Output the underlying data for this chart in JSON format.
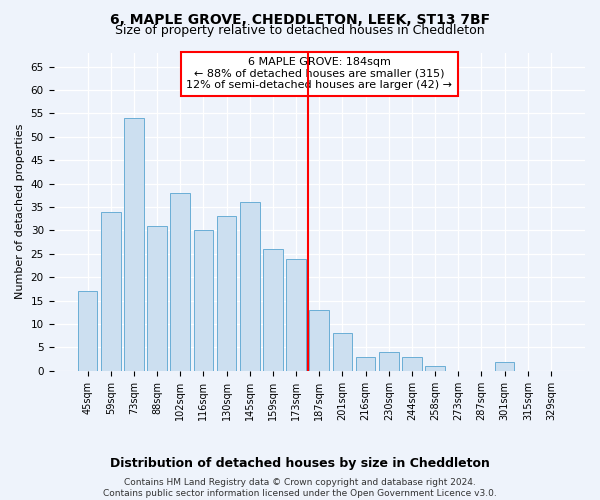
{
  "title": "6, MAPLE GROVE, CHEDDLETON, LEEK, ST13 7BF",
  "subtitle": "Size of property relative to detached houses in Cheddleton",
  "xlabel_bottom": "Distribution of detached houses by size in Cheddleton",
  "ylabel": "Number of detached properties",
  "categories": [
    "45sqm",
    "59sqm",
    "73sqm",
    "88sqm",
    "102sqm",
    "116sqm",
    "130sqm",
    "145sqm",
    "159sqm",
    "173sqm",
    "187sqm",
    "201sqm",
    "216sqm",
    "230sqm",
    "244sqm",
    "258sqm",
    "273sqm",
    "287sqm",
    "301sqm",
    "315sqm",
    "329sqm"
  ],
  "values": [
    17,
    34,
    54,
    31,
    38,
    30,
    33,
    36,
    26,
    24,
    13,
    8,
    3,
    4,
    3,
    1,
    0,
    0,
    2,
    0,
    0
  ],
  "bar_color": "#ccdff0",
  "bar_edge_color": "#6aaed6",
  "annotation_text": "6 MAPLE GROVE: 184sqm\n← 88% of detached houses are smaller (315)\n12% of semi-detached houses are larger (42) →",
  "annotation_box_color": "white",
  "annotation_box_edge_color": "red",
  "ylim": [
    0,
    68
  ],
  "yticks": [
    0,
    5,
    10,
    15,
    20,
    25,
    30,
    35,
    40,
    45,
    50,
    55,
    60,
    65
  ],
  "footer_text": "Contains HM Land Registry data © Crown copyright and database right 2024.\nContains public sector information licensed under the Open Government Licence v3.0.",
  "background_color": "#eef3fb",
  "grid_color": "white",
  "title_fontsize": 10,
  "subtitle_fontsize": 9,
  "tick_fontsize": 7,
  "ylabel_fontsize": 8,
  "footer_fontsize": 6.5,
  "annot_fontsize": 8
}
